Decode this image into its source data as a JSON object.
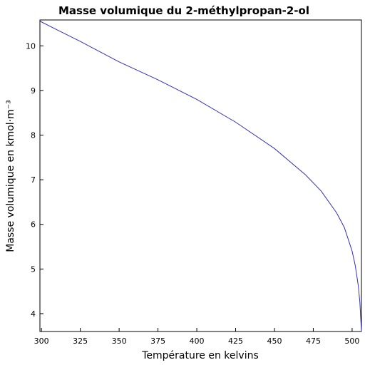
{
  "chart_data": {
    "type": "line",
    "title": "Masse volumique du 2-méthylpropan-2-ol",
    "xlabel": "Température en kelvins",
    "ylabel": "Masse volumique en kmol·m⁻³",
    "xlim": [
      299,
      506
    ],
    "ylim": [
      3.6,
      10.58
    ],
    "grid": false,
    "line_color": "#3333aa",
    "x_ticks": [
      300,
      325,
      350,
      375,
      400,
      425,
      450,
      475,
      500
    ],
    "y_ticks": [
      4,
      5,
      6,
      7,
      8,
      9,
      10
    ],
    "series": [
      {
        "x": [
          299.15,
          310,
          325,
          350,
          375,
          400,
          425,
          450,
          470,
          480,
          490,
          495,
          500,
          502,
          504,
          505,
          506
        ],
        "y": [
          10.55,
          10.36,
          10.1,
          9.64,
          9.24,
          8.8,
          8.29,
          7.7,
          7.11,
          6.75,
          6.26,
          5.93,
          5.4,
          5.08,
          4.62,
          4.25,
          3.6
        ]
      }
    ]
  }
}
